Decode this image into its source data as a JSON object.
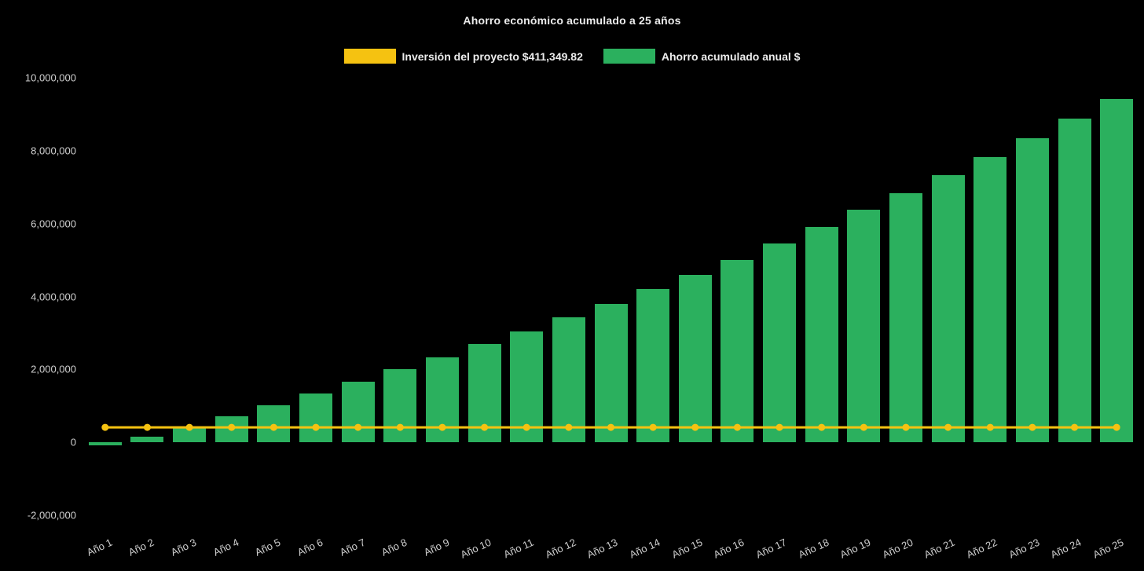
{
  "chart_data": {
    "type": "bar",
    "title": "Ahorro económico acumulado a 25 años",
    "background_color": "#000000",
    "title_color": "#ececec",
    "tick_color": "#cfcfcf",
    "legend_position": "top",
    "grid": false,
    "xlabel": "",
    "ylabel": "",
    "ylim": [
      -2000000,
      10000000
    ],
    "yticks": [
      10000000,
      8000000,
      6000000,
      4000000,
      2000000,
      0,
      -2000000
    ],
    "categories": [
      "Año 1",
      "Año 2",
      "Año 3",
      "Año 4",
      "Año 5",
      "Año 6",
      "Año 7",
      "Año 8",
      "Año 9",
      "Año 10",
      "Año 11",
      "Año 12",
      "Año 13",
      "Año 14",
      "Año 15",
      "Año 16",
      "Año 17",
      "Año 18",
      "Año 19",
      "Año 20",
      "Año 21",
      "Año 22",
      "Año 23",
      "Año 24",
      "Año 25"
    ],
    "series": [
      {
        "name": "Inversión del proyecto $411,349.82",
        "type": "line",
        "color": "#F5C211",
        "values": [
          411349.82,
          411349.82,
          411349.82,
          411349.82,
          411349.82,
          411349.82,
          411349.82,
          411349.82,
          411349.82,
          411349.82,
          411349.82,
          411349.82,
          411349.82,
          411349.82,
          411349.82,
          411349.82,
          411349.82,
          411349.82,
          411349.82,
          411349.82,
          411349.82,
          411349.82,
          411349.82,
          411349.82,
          411349.82
        ]
      },
      {
        "name": "Ahorro acumulado anual $",
        "type": "bar",
        "color": "#2BB05E",
        "values": [
          -80000,
          150000,
          420000,
          710000,
          1010000,
          1340000,
          1660000,
          2000000,
          2330000,
          2690000,
          3040000,
          3420000,
          3800000,
          4200000,
          4600000,
          5010000,
          5460000,
          5900000,
          6370000,
          6840000,
          7330000,
          7830000,
          8340000,
          8870000,
          9420000
        ]
      }
    ]
  }
}
